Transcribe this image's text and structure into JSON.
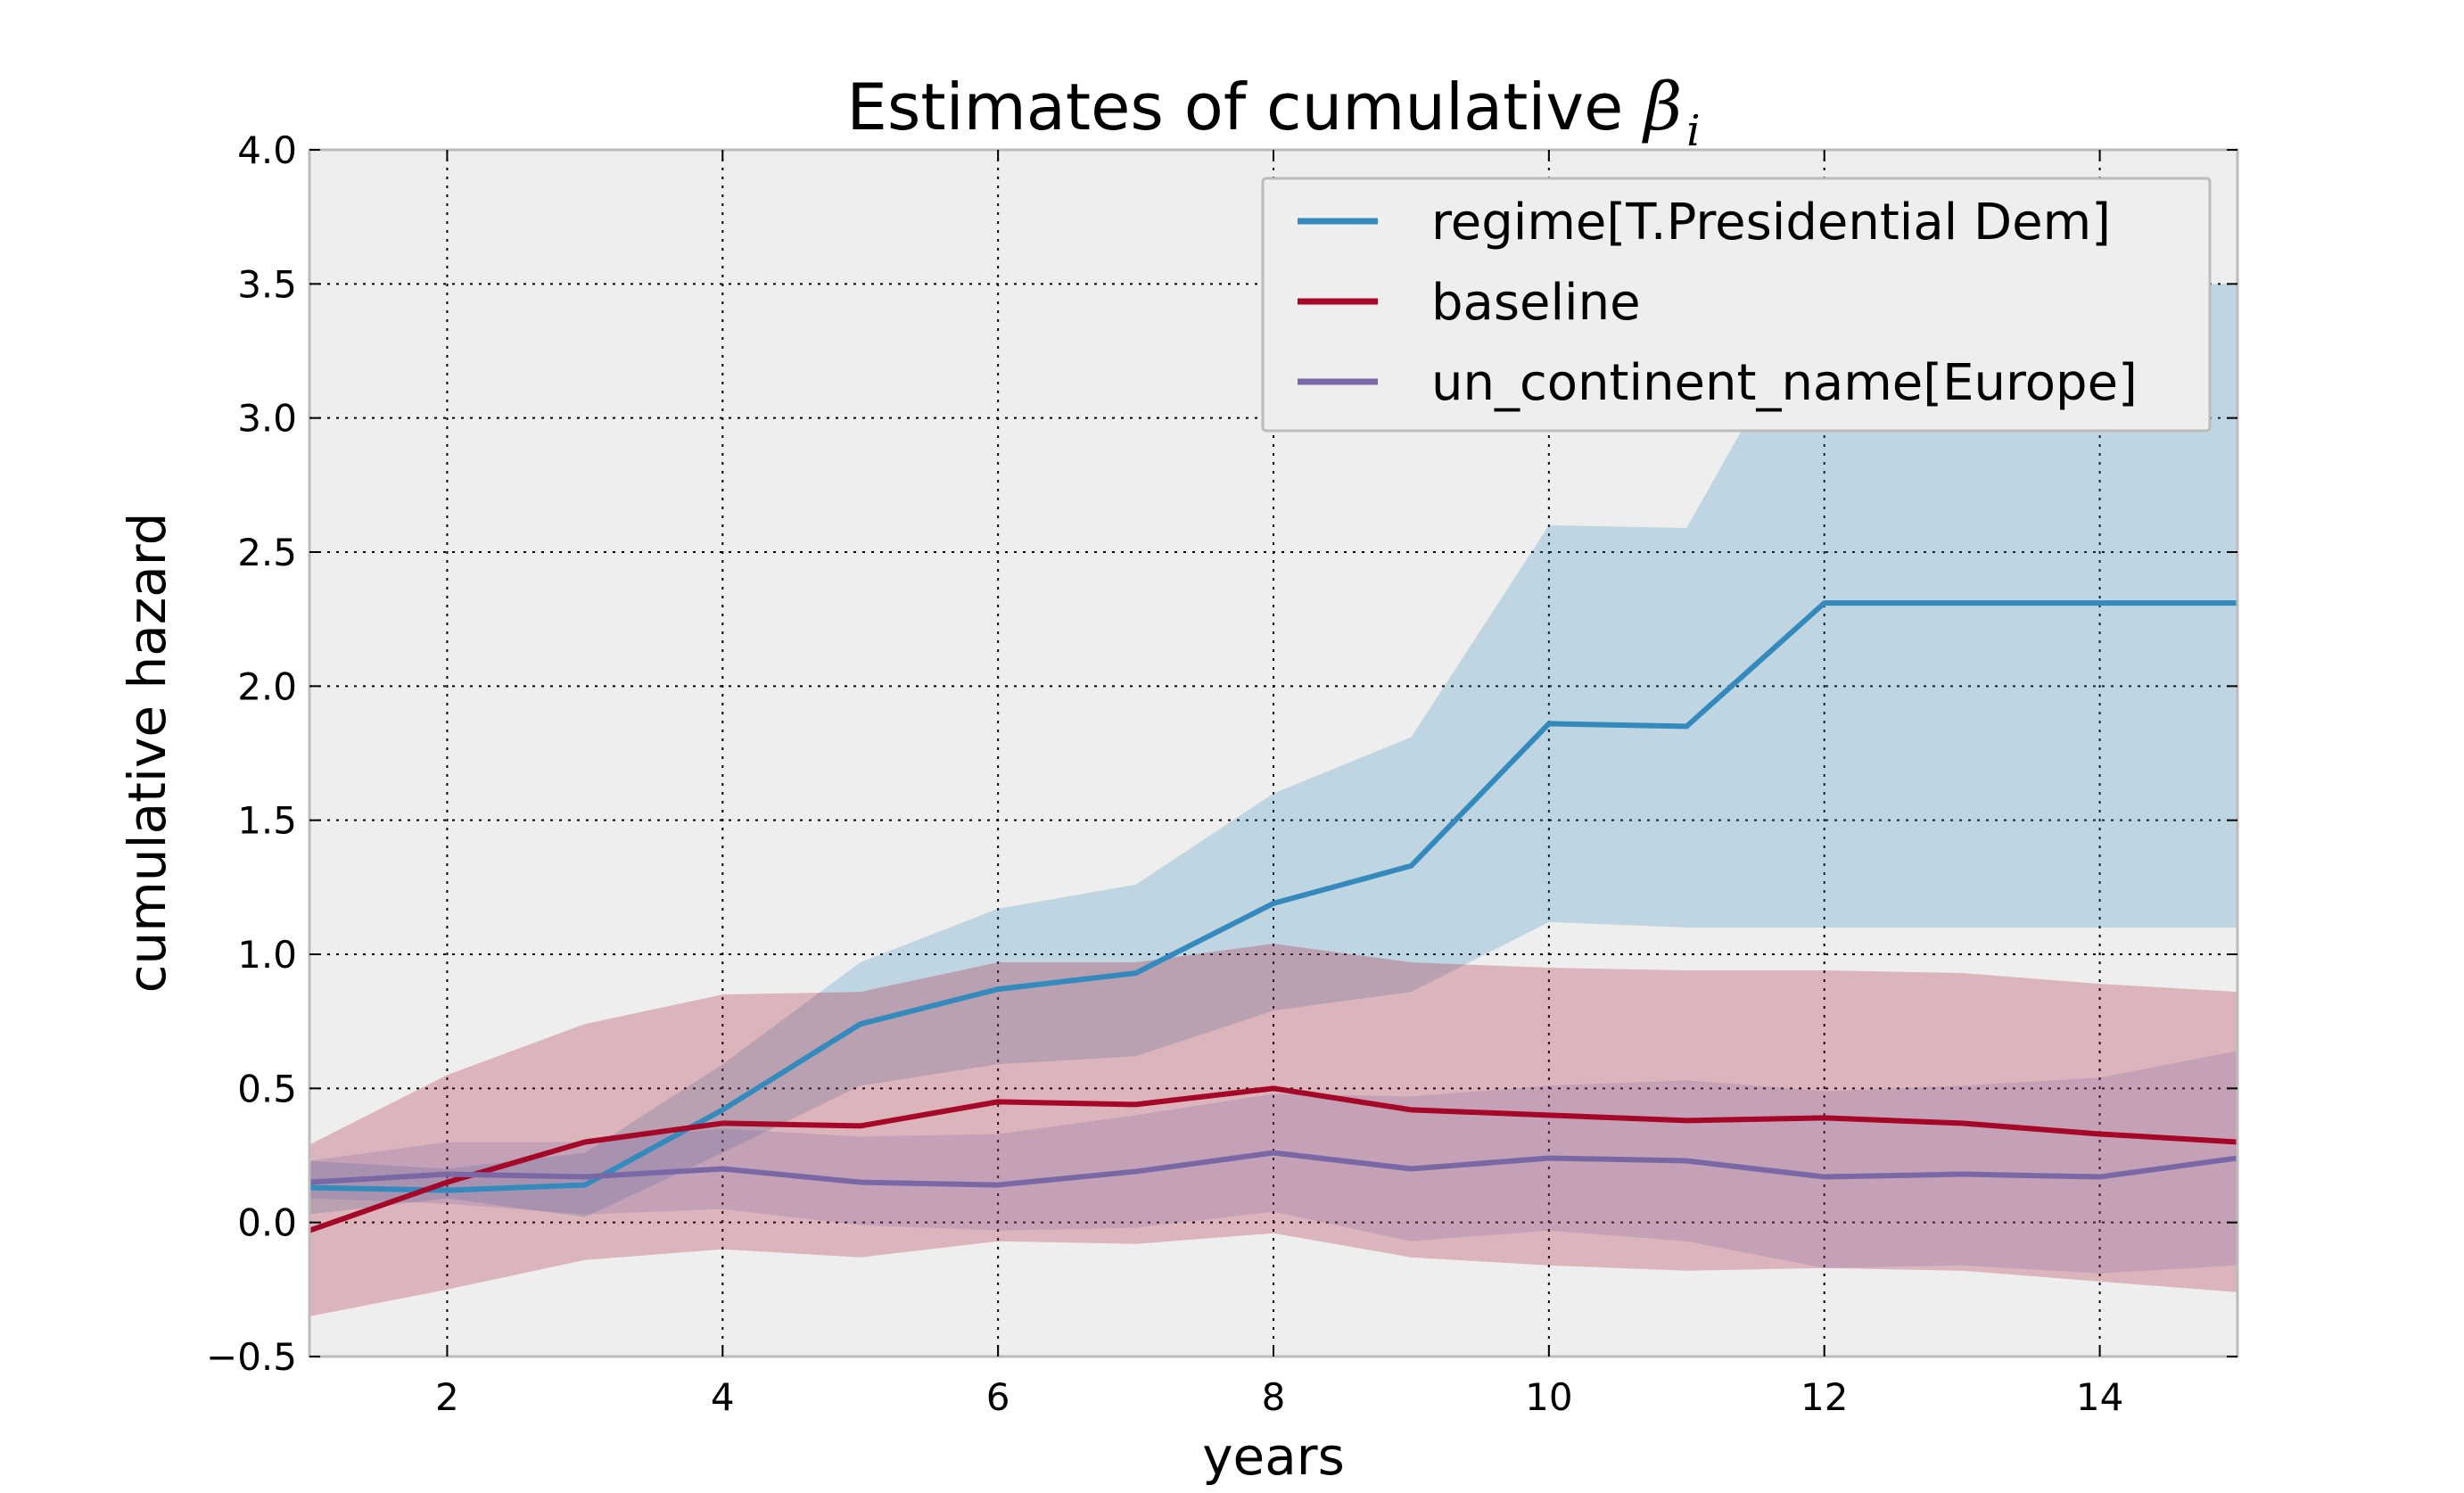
{
  "chart_data": {
    "type": "line",
    "title": "Estimates of cumulative",
    "title_symbol": "β",
    "title_subscript": "i",
    "xlabel": "years",
    "ylabel": "cumulative hazard",
    "xlim": [
      1,
      15
    ],
    "ylim": [
      -0.5,
      4.0
    ],
    "xticks": [
      2,
      4,
      6,
      8,
      10,
      12,
      14
    ],
    "yticks": [
      -0.5,
      0.0,
      0.5,
      1.0,
      1.5,
      2.0,
      2.5,
      3.0,
      3.5,
      4.0
    ],
    "ytick_labels": [
      "−0.5",
      "0.0",
      "0.5",
      "1.0",
      "1.5",
      "2.0",
      "2.5",
      "3.0",
      "3.5",
      "4.0"
    ],
    "grid": true,
    "legend_position": "top-right",
    "x": [
      1,
      2,
      3,
      4,
      5,
      6,
      7,
      8,
      9,
      10,
      11,
      12,
      13,
      14,
      15
    ],
    "series": [
      {
        "name": "regime[T.Presidential Dem]",
        "color": "#348ABD",
        "band_color": "#348ABD",
        "band_opacity": 0.25,
        "values": [
          0.13,
          0.12,
          0.14,
          0.42,
          0.74,
          0.87,
          0.93,
          1.19,
          1.33,
          1.86,
          1.85,
          2.31,
          2.31,
          2.31,
          2.31
        ],
        "lower": [
          0.03,
          0.09,
          0.02,
          0.26,
          0.51,
          0.59,
          0.62,
          0.79,
          0.86,
          1.12,
          1.1,
          1.1,
          1.1,
          1.1,
          1.1
        ],
        "upper": [
          0.23,
          0.2,
          0.26,
          0.59,
          0.97,
          1.17,
          1.26,
          1.6,
          1.81,
          2.6,
          2.59,
          3.5,
          3.5,
          3.5,
          3.5
        ]
      },
      {
        "name": "baseline",
        "color": "#A60628",
        "band_color": "#A60628",
        "band_opacity": 0.25,
        "values": [
          -0.03,
          0.15,
          0.3,
          0.37,
          0.36,
          0.45,
          0.44,
          0.5,
          0.42,
          0.4,
          0.38,
          0.39,
          0.37,
          0.33,
          0.3
        ],
        "lower": [
          -0.35,
          -0.25,
          -0.14,
          -0.1,
          -0.13,
          -0.07,
          -0.08,
          -0.04,
          -0.13,
          -0.16,
          -0.18,
          -0.17,
          -0.18,
          -0.22,
          -0.26
        ],
        "upper": [
          0.29,
          0.55,
          0.74,
          0.85,
          0.86,
          0.97,
          0.97,
          1.04,
          0.97,
          0.95,
          0.94,
          0.94,
          0.93,
          0.89,
          0.86
        ]
      },
      {
        "name": "un_continent_name[Europe]",
        "color": "#7A68A6",
        "band_color": "#7A68A6",
        "band_opacity": 0.25,
        "values": [
          0.15,
          0.18,
          0.17,
          0.2,
          0.15,
          0.14,
          0.19,
          0.26,
          0.2,
          0.24,
          0.23,
          0.17,
          0.18,
          0.17,
          0.24
        ],
        "lower": [
          0.09,
          0.07,
          0.03,
          0.05,
          -0.01,
          -0.03,
          -0.02,
          0.04,
          -0.07,
          -0.03,
          -0.07,
          -0.17,
          -0.16,
          -0.19,
          -0.16
        ],
        "upper": [
          0.23,
          0.3,
          0.3,
          0.35,
          0.32,
          0.33,
          0.4,
          0.48,
          0.47,
          0.51,
          0.53,
          0.49,
          0.51,
          0.54,
          0.64
        ]
      }
    ]
  }
}
